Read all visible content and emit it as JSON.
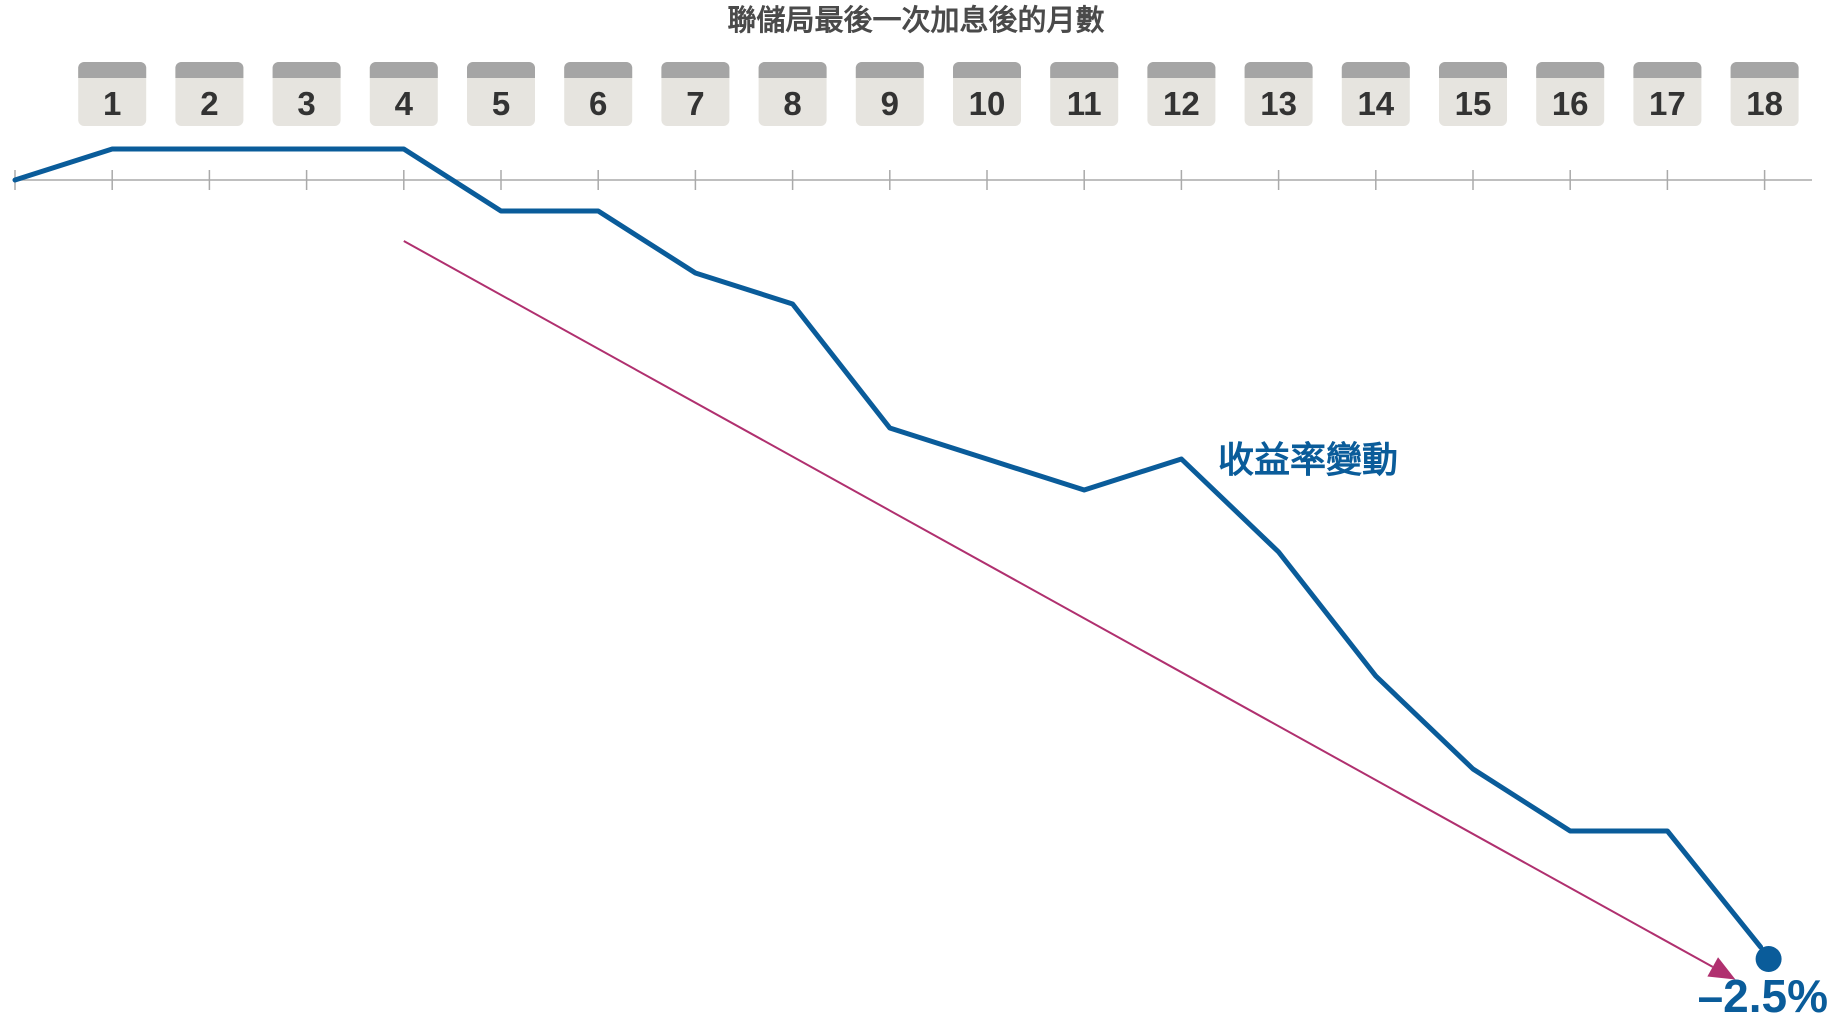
{
  "chart_data": {
    "type": "line",
    "title": "聯儲局最後一次加息後的月數",
    "x": [
      0,
      1,
      2,
      3,
      4,
      5,
      6,
      7,
      8,
      9,
      10,
      11,
      12,
      13,
      14,
      15,
      16,
      17,
      18
    ],
    "month_labels": [
      "1",
      "2",
      "3",
      "4",
      "5",
      "6",
      "7",
      "8",
      "9",
      "10",
      "11",
      "12",
      "13",
      "14",
      "15",
      "16",
      "17",
      "18"
    ],
    "series": [
      {
        "name": "收益率變動",
        "values": [
          0,
          0.1,
          0.1,
          0.1,
          0.1,
          -0.1,
          -0.1,
          -0.3,
          -0.4,
          -0.8,
          -0.9,
          -1.0,
          -0.9,
          -1.2,
          -1.6,
          -1.9,
          -2.1,
          -2.1,
          -2.5
        ]
      }
    ],
    "end_label": "–2.5%",
    "trend_arrow": {
      "from_x": 4,
      "from_y": -0.1,
      "to_x": 17.7,
      "to_y": -2.45
    },
    "xlim": [
      0,
      18.5
    ],
    "ylim": [
      -2.6,
      0.1
    ],
    "colors": {
      "series": "#0a5c9a",
      "trend": "#b0306f",
      "axis": "#aaaaaa",
      "calendar_top": "#a5a5a5",
      "calendar_body": "#e6e4df",
      "title": "#4a4a4a"
    }
  }
}
